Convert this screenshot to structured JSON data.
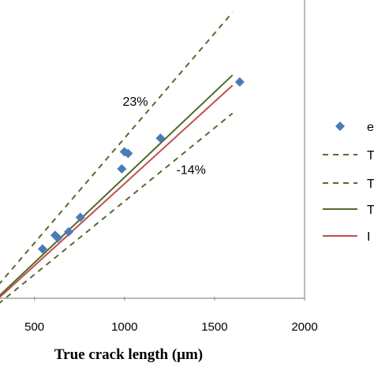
{
  "chart_data": {
    "type": "scatter",
    "xlabel": "True crack length (μm)",
    "x_ticks": [
      500,
      1000,
      1500,
      2000
    ],
    "xlim": [
      300,
      2000
    ],
    "ylim": [
      300,
      2050
    ],
    "grid": false,
    "legend_placement": "right",
    "series": [
      {
        "kind": "points",
        "marker": "diamond",
        "color": "#4a7ab8",
        "legend_text": "e",
        "x": [
          545,
          615,
          630,
          690,
          755,
          985,
          1000,
          1020,
          1200,
          1640
        ],
        "y": [
          580,
          660,
          645,
          680,
          765,
          1050,
          1150,
          1140,
          1230,
          1560
        ]
      },
      {
        "kind": "line",
        "dash": "dashed",
        "color": "#5a6a2e",
        "legend_text": "T",
        "x": [
          300,
          1600
        ],
        "y": [
          369,
          1968
        ]
      },
      {
        "kind": "line",
        "dash": "dashed",
        "color": "#5a6a2e",
        "legend_text": "T",
        "x": [
          300,
          1600
        ],
        "y": [
          258,
          1376
        ]
      },
      {
        "kind": "line",
        "dash": "solid",
        "color": "#4f6b2a",
        "legend_text": "T",
        "x": [
          300,
          1600
        ],
        "y": [
          300,
          1600
        ]
      },
      {
        "kind": "line",
        "dash": "solid",
        "color": "#c0504d",
        "legend_text": "I",
        "x": [
          300,
          1600
        ],
        "y": [
          290,
          1540
        ]
      }
    ],
    "annotations": [
      {
        "text": "23%",
        "x": 1060,
        "y": 1420
      },
      {
        "text": "-14%",
        "x": 1370,
        "y": 1020
      }
    ]
  }
}
